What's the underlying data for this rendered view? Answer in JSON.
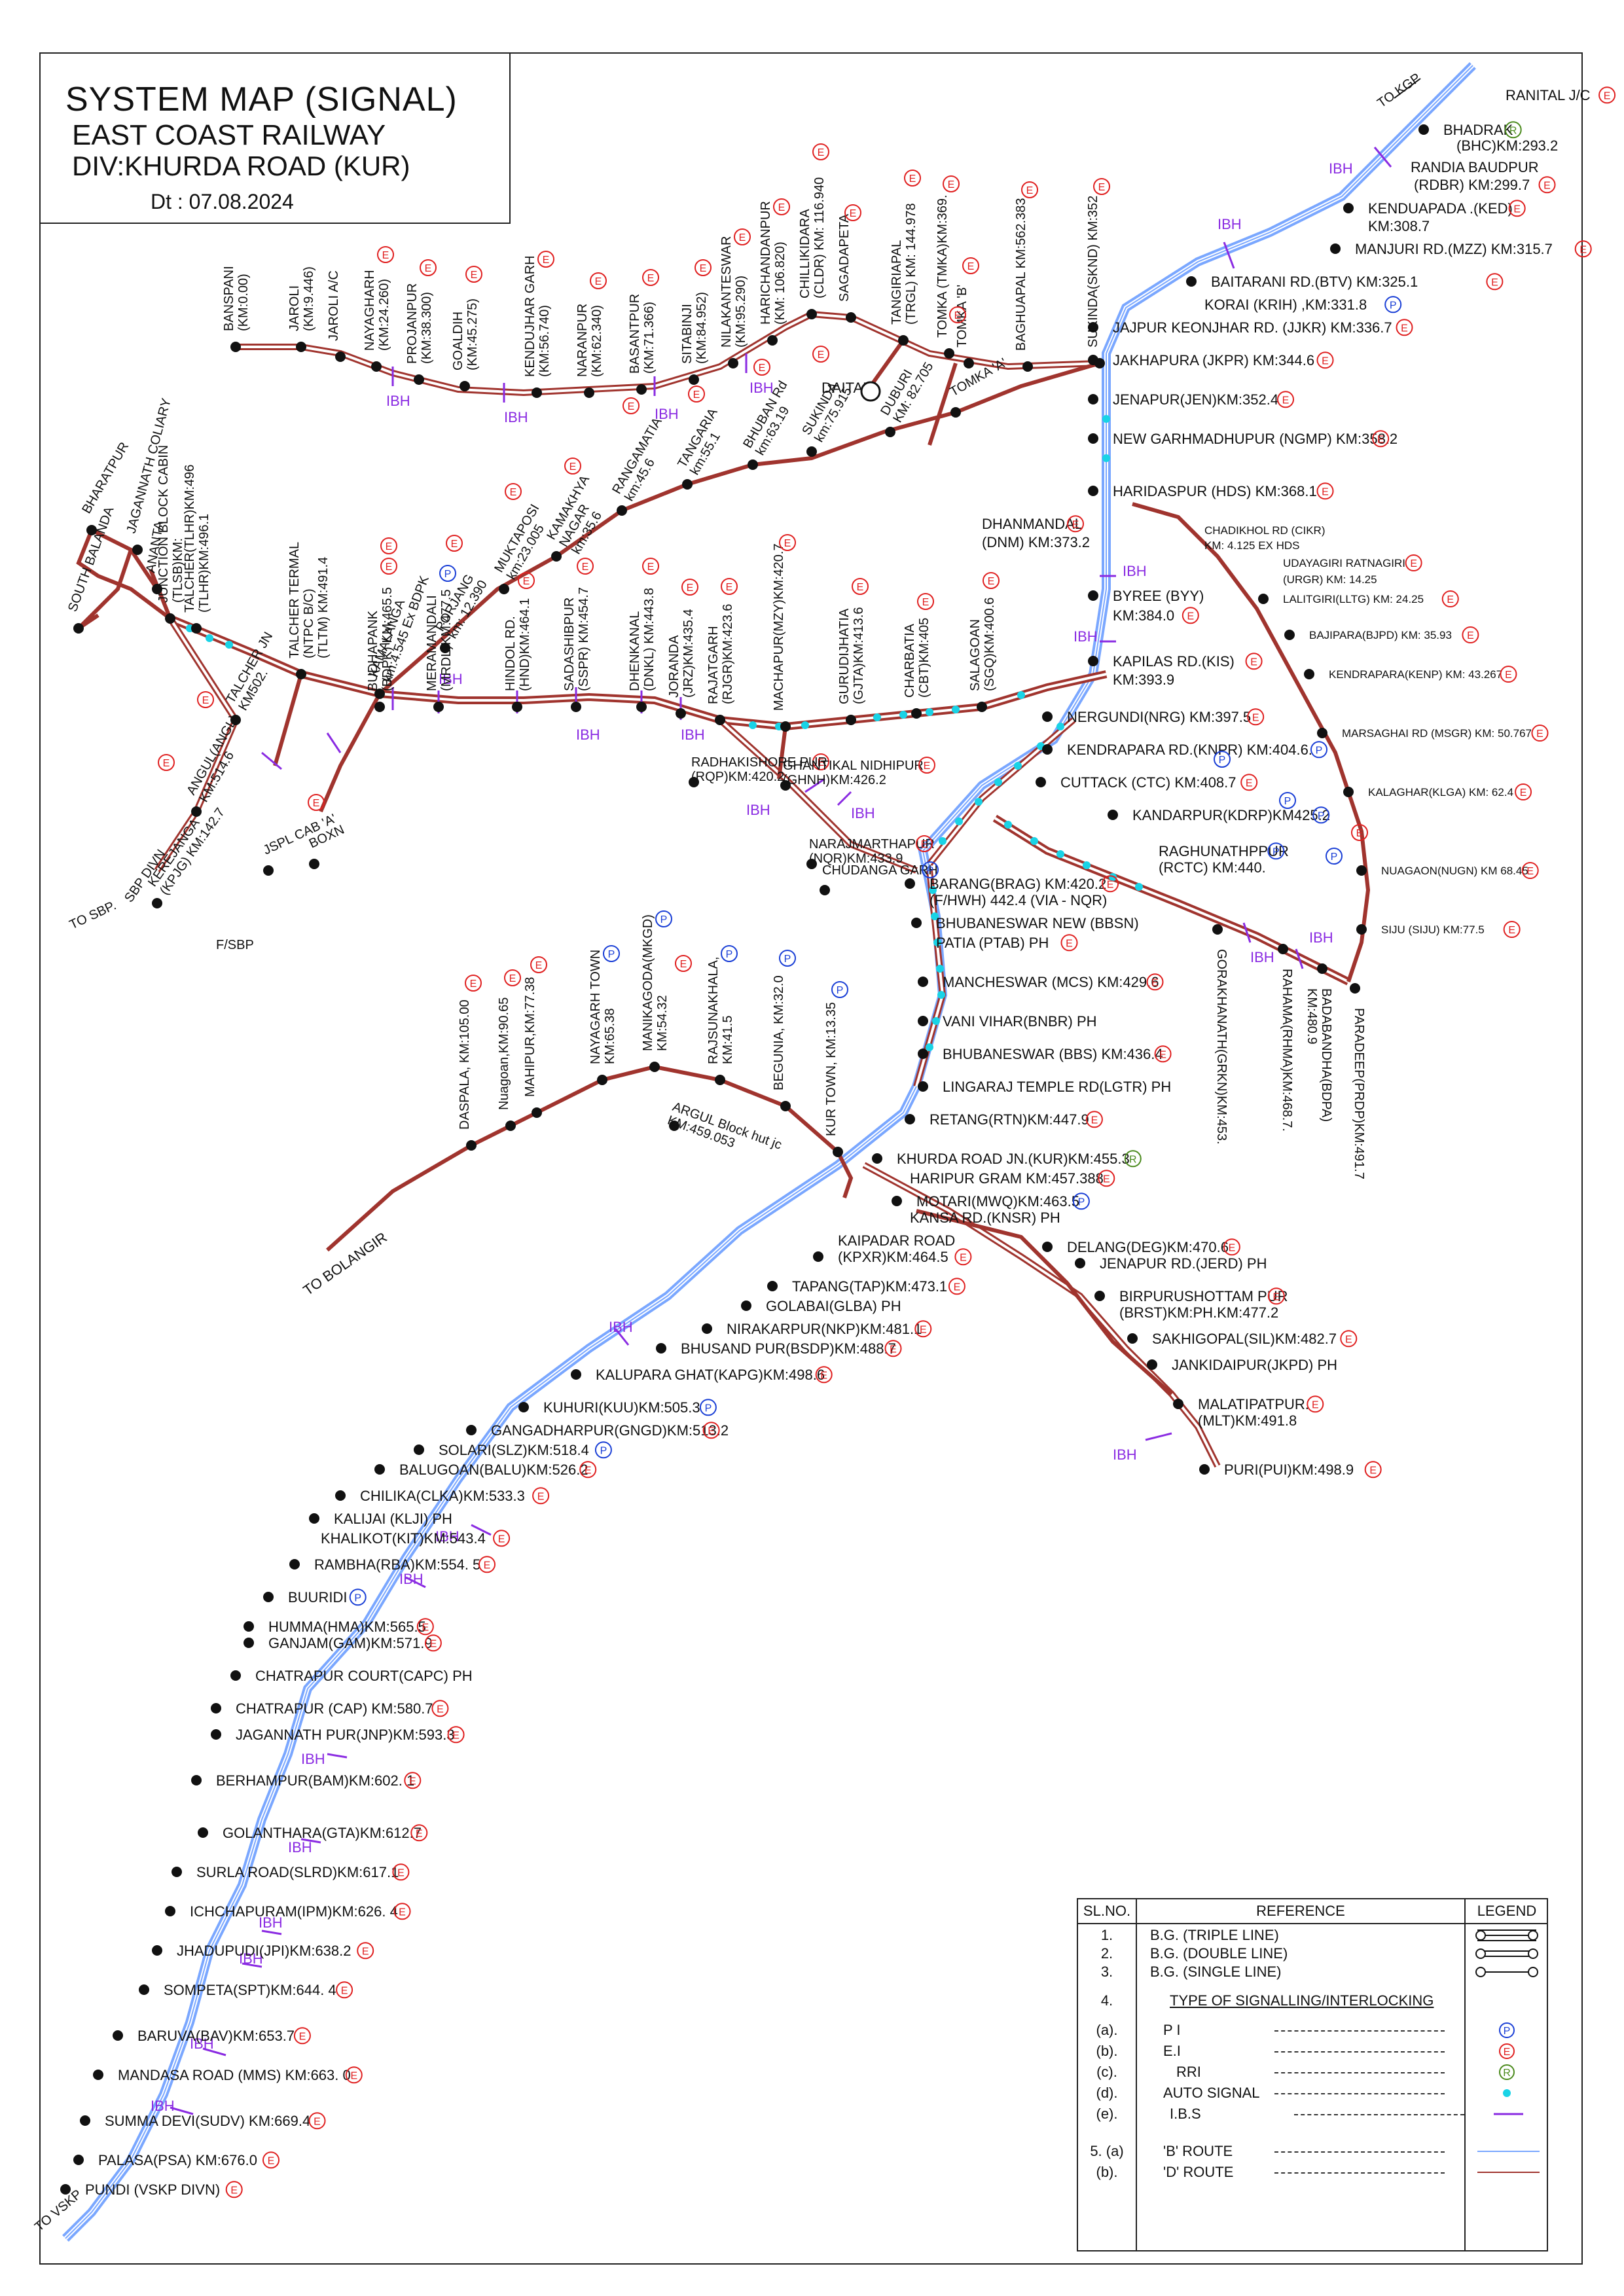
{
  "title": {
    "line1": "SYSTEM MAP (SIGNAL)",
    "line2": "EAST COAST RAILWAY",
    "line3": "DIV:KHURDA ROAD (KUR)",
    "date": "Dt : 07.08.2024"
  },
  "colors": {
    "b_route": "#7aa7ff",
    "d_route": "#a0342e",
    "auto_signal": "#19d3e6",
    "ibs": "#8a2be2",
    "ei": "#e02020",
    "pi": "#1a3fd6",
    "rri": "#4a8a1c"
  },
  "directions": {
    "to_kgp": "TO KGP",
    "to_sbp": "TO SBP.",
    "sbp_divn": "SBP\nDIVN",
    "to_bolangir": "TO BOLANGIR",
    "to_vskp": "TO VSKP",
    "f_sbp": "F/SBP",
    "daitari": "DAITARI"
  },
  "ibh_label": "IBH",
  "ibs_label": "IBS",
  "main_line": [
    {
      "label": "RANITAL J/C",
      "mark": "E"
    },
    {
      "label": "BHADRAK",
      "mark": "R"
    },
    {
      "label": "(BHC)KM:293.2",
      "mark": ""
    },
    {
      "label": "RANDIA BAUDPUR",
      "mark": ""
    },
    {
      "label": "(RDBR) KM:299.7",
      "mark": "E"
    },
    {
      "label": "KENDUAPADA .(KED)",
      "mark": "E"
    },
    {
      "label": "KM:308.7",
      "mark": ""
    },
    {
      "label": "MANJURI RD.(MZZ)   KM:315.7",
      "mark": "E"
    },
    {
      "label": "BAITARANI RD.(BTV)        KM:325.1",
      "mark": "E"
    },
    {
      "label": "KORAI (KRIH) ,KM:331.8",
      "mark": "P"
    },
    {
      "label": "JAJPUR KEONJHAR RD. (JJKR) KM:336.7",
      "mark": "E"
    },
    {
      "label": "JAKHAPURA (JKPR) KM:344.6",
      "mark": "E"
    },
    {
      "label": "JENAPUR(JEN)KM:352.4",
      "mark": "E"
    },
    {
      "label": "NEW GARHMADHUPUR (NGMP) KM:358.2",
      "mark": "E"
    },
    {
      "label": "HARIDASPUR (HDS) KM:368.1",
      "mark": "E"
    },
    {
      "label": "DHANMANDAL",
      "mark": "E"
    },
    {
      "label": "(DNM) KM:373.2",
      "mark": ""
    },
    {
      "label": "BYREE (BYY)",
      "mark": ""
    },
    {
      "label": "KM:384.0",
      "mark": "E"
    },
    {
      "label": "KAPILAS RD.(KIS)",
      "mark": "E"
    },
    {
      "label": "KM:393.9",
      "mark": ""
    },
    {
      "label": "NERGUNDI(NRG) KM:397.5",
      "mark": "E"
    },
    {
      "label": "KENDRAPARA RD.(KNPR) KM:404.6.",
      "mark": "P"
    },
    {
      "label": "CUTTACK (CTC) KM:408.7",
      "mark": "E"
    },
    {
      "label": "KANDARPUR(KDRP)KM425.2",
      "mark": "P"
    },
    {
      "label": "RAGHUNATHPPUR",
      "mark": "P"
    },
    {
      "label": "(RCTC) KM:440.",
      "mark": ""
    },
    {
      "label": "BARANG(BRAG) KM:420.2",
      "mark": "E"
    },
    {
      "label": "(F/HWH) 442.4 (VIA - NQR)",
      "mark": ""
    },
    {
      "label": "BHUBANESWAR NEW (BBSN)",
      "mark": ""
    },
    {
      "label": "PATIA (PTAB) PH",
      "mark": "E"
    },
    {
      "label": "MANCHESWAR (MCS) KM:429.6",
      "mark": "E"
    },
    {
      "label": "VANI VIHAR(BNBR)  PH",
      "mark": ""
    },
    {
      "label": "BHUBANESWAR (BBS) KM:436.4",
      "mark": "E"
    },
    {
      "label": "LINGARAJ TEMPLE RD(LGTR) PH",
      "mark": ""
    },
    {
      "label": "RETANG(RTN)KM:447.9",
      "mark": "E"
    },
    {
      "label": "KHURDA ROAD JN.(KUR)KM:455.3",
      "mark": "R"
    },
    {
      "label": "HARIPUR GRAM KM:457.388",
      "mark": "E"
    },
    {
      "label": "MOTARI(MWQ)KM:463.5",
      "mark": "P"
    },
    {
      "label": "KANSA RD.(KNSR)  PH",
      "mark": ""
    },
    {
      "label": "KAIPADAR ROAD",
      "mark": ""
    },
    {
      "label": "(KPXR)KM:464.5",
      "mark": "E"
    },
    {
      "label": "TAPANG(TAP)KM:473.1",
      "mark": "E"
    },
    {
      "label": "GOLABAI(GLBA)  PH",
      "mark": ""
    },
    {
      "label": "NIRAKARPUR(NKP)KM:481.1",
      "mark": "E"
    },
    {
      "label": "BHUSAND PUR(BSDP)KM:488.7",
      "mark": "E"
    },
    {
      "label": "KALUPARA GHAT(KAPG)KM:498.6",
      "mark": "E"
    },
    {
      "label": "KUHURI(KUU)KM:505.3",
      "mark": "P"
    },
    {
      "label": "GANGADHARPUR(GNGD)KM:513.2",
      "mark": "E"
    },
    {
      "label": "SOLARI(SLZ)KM:518.4",
      "mark": "P"
    },
    {
      "label": "BALUGOAN(BALU)KM:526.2",
      "mark": "E"
    },
    {
      "label": "CHILIKA(CLKA)KM:533.3",
      "mark": "E"
    },
    {
      "label": "KALIJAI (KLJI) PH",
      "mark": ""
    },
    {
      "label": "KHALIKOT(KIT)KM:543.4",
      "mark": "E"
    },
    {
      "label": "RAMBHA(RBA)KM:554. 5",
      "mark": "E"
    },
    {
      "label": "BUURIDI",
      "mark": "P"
    },
    {
      "label": "HUMMA(HMA)KM:565.5",
      "mark": "E"
    },
    {
      "label": "GANJAM(GAM)KM:571.9",
      "mark": "E"
    },
    {
      "label": "CHATRAPUR COURT(CAPC)  PH",
      "mark": ""
    },
    {
      "label": "CHATRAPUR (CAP) KM:580.7",
      "mark": "E"
    },
    {
      "label": "JAGANNATH PUR(JNP)KM:593.3",
      "mark": "E"
    },
    {
      "label": "BERHAMPUR(BAM)KM:602. 1",
      "mark": "E"
    },
    {
      "label": "GOLANTHARA(GTA)KM:612.7",
      "mark": "E"
    },
    {
      "label": "SURLA ROAD(SLRD)KM:617.1",
      "mark": "E"
    },
    {
      "label": "ICHCHAPURAM(IPM)KM:626. 4",
      "mark": "E"
    },
    {
      "label": "JHADUPUDI(JPI)KM:638.2",
      "mark": "E"
    },
    {
      "label": "SOMPETA(SPT)KM:644. 4",
      "mark": "E"
    },
    {
      "label": "BARUVA(BAV)KM:653.7",
      "mark": "E"
    },
    {
      "label": "MANDASA ROAD (MMS) KM:663. 0",
      "mark": "E"
    },
    {
      "label": "SUMMA DEVI(SUDV) KM:669.4",
      "mark": "E"
    },
    {
      "label": "PALASA(PSA) KM:676.0",
      "mark": "E"
    },
    {
      "label": "PUNDI (VSKP DIVN)",
      "mark": "E"
    }
  ],
  "puri_line": [
    {
      "label": "DELANG(DEG)KM:470.6",
      "mark": "E"
    },
    {
      "label": "JENAPUR RD.(JERD) PH",
      "mark": ""
    },
    {
      "label": "BIRPURUSHOTTAM PUR",
      "mark": "E"
    },
    {
      "label": "(BRST)KM:PH.KM:477.2",
      "mark": ""
    },
    {
      "label": "SAKHIGOPAL(SIL)KM:482.7",
      "mark": "E"
    },
    {
      "label": "JANKIDAIPUR(JKPD) PH",
      "mark": ""
    },
    {
      "label": "MALATIPATPUR.",
      "mark": "E"
    },
    {
      "label": "(MLT)KM:491.8",
      "mark": ""
    },
    {
      "label": "PURI(PUI)KM:498.9",
      "mark": "E"
    }
  ],
  "paradeep_line": [
    {
      "label": "GORAKHANATH(GRKN)KM:453.",
      "mark": "P"
    },
    {
      "label": "RAHAMA(RHMA)KM:468.7.",
      "mark": "P"
    },
    {
      "label": "BADABANDHA(BDPA)\nKM:480.9",
      "mark": "P"
    },
    {
      "label": "PARADEEP(PRDP)KM:491.7",
      "mark": "E"
    }
  ],
  "kendrapara_line": [
    {
      "label": "CHADIKHOL RD (CIKR)",
      "mark": ""
    },
    {
      "label": "KM: 4.125 EX HDS",
      "mark": ""
    },
    {
      "label": "UDAYAGIRI RATNAGIRI",
      "mark": "E"
    },
    {
      "label": "(URGR) KM: 14.25",
      "mark": ""
    },
    {
      "label": "LALITGIRI(LLTG) KM: 24.25",
      "mark": "E"
    },
    {
      "label": "BAJIPARA(BJPD) KM: 35.93",
      "mark": "E"
    },
    {
      "label": "KENDRAPARA(KENP) KM: 43.267",
      "mark": "E"
    },
    {
      "label": "MARSAGHAI RD (MSGR) KM: 50.767",
      "mark": "E"
    },
    {
      "label": "KALAGHAR(KLGA) KM: 62.4",
      "mark": "E"
    },
    {
      "label": "NUAGAON(NUGN) KM 68.45",
      "mark": "E"
    },
    {
      "label": "SIJU (SIJU) KM:77.5",
      "mark": "E"
    }
  ],
  "top_line": [
    {
      "label": "BANSPANI\n(KM:0.00)",
      "mark": ""
    },
    {
      "label": "JAROLI\n(KM:9.446)",
      "mark": ""
    },
    {
      "label": "JAROLI A/C",
      "mark": ""
    },
    {
      "label": "NAYAGHARH\n(KM:24.260)",
      "mark": "E"
    },
    {
      "label": "PROJANPUR\n(KM:38.300)",
      "mark": "E"
    },
    {
      "label": "GOALDIH\n(KM:45.275)",
      "mark": "E"
    },
    {
      "label": "KENDUJHAR GARH\n(KM:56.740)",
      "mark": "E"
    },
    {
      "label": "NARANPUR\n(KM:62.340)",
      "mark": "E"
    },
    {
      "label": "BASANTPUR\n(KM:71.366)",
      "mark": "E"
    },
    {
      "label": "SITABINJI\n(KM:84.952)",
      "mark": "E"
    },
    {
      "label": "NILAKANTESWAR\n(KM:95.290)",
      "mark": "E"
    },
    {
      "label": "HARICHANDANPUR\n(KM: 106.820)",
      "mark": "E"
    },
    {
      "label": "CHILLIKIDARA\n(CLDR) KM: 116.940",
      "mark": "E"
    },
    {
      "label": "SAGADAPETA",
      "mark": "E"
    },
    {
      "label": "TANGIRIAPAL\n(TRGL) KM: 144.978",
      "mark": "E"
    },
    {
      "label": "TOMKA (TMKA)KM:369.",
      "mark": "E"
    },
    {
      "label": "TOMKA 'B'",
      "mark": "E"
    },
    {
      "label": "BAGHUAPAL KM:562.383",
      "mark": "E"
    },
    {
      "label": "SUKINDA(SKND) KM:352",
      "mark": "E"
    }
  ],
  "talcher_line": [
    {
      "label": "BHARATPUR",
      "mark": ""
    },
    {
      "label": "JAGANNATH COLIARY",
      "mark": ""
    },
    {
      "label": "ANANTA",
      "mark": ""
    },
    {
      "label": "JUNCTION BLOCK CABIN\n(TLSB)KM:",
      "mark": ""
    },
    {
      "label": "TALCHER(TLHR)KM:496\n(TLHR)KM:496.1",
      "mark": ""
    },
    {
      "label": "SOUTH BALANDA",
      "mark": ""
    },
    {
      "label": "TALCHER TERMAL\n(NTPC B/C)\n(TLTM) KM:491.4",
      "mark": ""
    },
    {
      "label": "KAMALANGA\nkm:4.545 Ex BDPK",
      "mark": "E"
    },
    {
      "label": "PORJANG\nkm: 12.390",
      "mark": "E"
    },
    {
      "label": "MUKTAPOSI\nkm:23.005",
      "mark": "E"
    },
    {
      "label": "KAMAKHYA\nNAGAR\nkm:35.6",
      "mark": "E"
    },
    {
      "label": "RANGAMATIA\nkm:45.6",
      "mark": "E"
    },
    {
      "label": "TANGARIA\nkm:55.1",
      "mark": "E"
    },
    {
      "label": "BHUBAN Rd\nkm:63.19",
      "mark": "E"
    },
    {
      "label": "SUKINDA\nkm:75.915",
      "mark": "E"
    },
    {
      "label": "DUBURI\nKM: 82.705",
      "mark": ""
    },
    {
      "label": "TOMKA 'A'",
      "mark": "E"
    },
    {
      "label": "TALCHER JN\nKM502.",
      "mark": ""
    },
    {
      "label": "ANGUL(ANGL)\nKM:514.6",
      "mark": "E"
    },
    {
      "label": "BUDHAPANK\n(BDPK) KM:465.5",
      "mark": "E"
    },
    {
      "label": "MERAMANDALI\n(MRDL)KM:477.5",
      "mark": "P"
    },
    {
      "label": "HINDOL RD.\n(HND)KM:464.1",
      "mark": "E"
    },
    {
      "label": "SADASHIBPUR\n(SSPR) KM:454.7",
      "mark": "E"
    },
    {
      "label": "DHENKANAL\n(DNKL) KM:443.8",
      "mark": "E"
    },
    {
      "label": "JORANDA\n(JRZ)KM:435.4",
      "mark": "E"
    },
    {
      "label": "RAJATGARH\n(RJGR)KM:423.6",
      "mark": "E"
    },
    {
      "label": "MACHAPUR(MZY)KM:420.7",
      "mark": "E"
    },
    {
      "label": "GURUDIJHATIA\n(GJTA)KM:413.6",
      "mark": "E"
    },
    {
      "label": "CHARBATIA\n(CBT)KM:405",
      "mark": "E"
    },
    {
      "label": "SALAGOAN\n(SGQ)KM:400.6",
      "mark": "E"
    },
    {
      "label": "RADHAKISHORE PUR\n(RQP)KM:420.2",
      "mark": "E"
    },
    {
      "label": "GHANTIKAL NIDHIPUR\n(GHNH)KM:426.2",
      "mark": "E"
    },
    {
      "label": "NARAJMARTHAPUR\n(NQR)KM:433.9",
      "mark": "E"
    },
    {
      "label": "CHUDANGA GARH",
      "mark": "P"
    },
    {
      "label": "JSPL CAB 'A'",
      "mark": ""
    },
    {
      "label": "BOXN",
      "mark": "E"
    },
    {
      "label": "KEREJANGA\n(KPJG) KM:142.7",
      "mark": "E"
    }
  ],
  "bolangir_line": [
    {
      "label": "DASPALA, KM:105.00",
      "mark": "E"
    },
    {
      "label": "Nuagoan,KM:90.65",
      "mark": "E"
    },
    {
      "label": "MAHIPUR,KM:77.38",
      "mark": "E"
    },
    {
      "label": "NAYAGARH TOWN\nKM:65.38",
      "mark": "P"
    },
    {
      "label": "MANIKAGODA(MKGD)\nKM:54.32",
      "mark": "P"
    },
    {
      "label": "RAJSUNAKHALA,\nKM:41.5",
      "mark": "P"
    },
    {
      "label": "BEGUNIA, KM:32.0",
      "mark": "P"
    },
    {
      "label": "KUR TOWN, KM:13.35",
      "mark": "P"
    },
    {
      "label": "ARGUL Block hut jc\nKM:459.053",
      "mark": "E"
    }
  ],
  "reference": {
    "headers": {
      "sl": "SL.NO.",
      "ref": "REFERENCE",
      "legend": "LEGEND"
    },
    "rows": [
      {
        "sl": "1.",
        "desc": "B.G. (TRIPLE LINE)"
      },
      {
        "sl": "2.",
        "desc": "B.G. (DOUBLE LINE)"
      },
      {
        "sl": "3.",
        "desc": "B.G. (SINGLE LINE)"
      },
      {
        "sl": "4.",
        "desc": "TYPE OF SIGNALLING/INTERLOCKING"
      },
      {
        "sl": "(a).",
        "desc": "P I"
      },
      {
        "sl": "(b).",
        "desc": "E.I"
      },
      {
        "sl": "(c).",
        "desc": "RRI"
      },
      {
        "sl": "(d).",
        "desc": "AUTO SIGNAL"
      },
      {
        "sl": "(e).",
        "desc": "I.B.S"
      },
      {
        "sl": "5. (a)",
        "desc": "'B' ROUTE"
      },
      {
        "sl": "(b).",
        "desc": "'D' ROUTE"
      }
    ]
  }
}
